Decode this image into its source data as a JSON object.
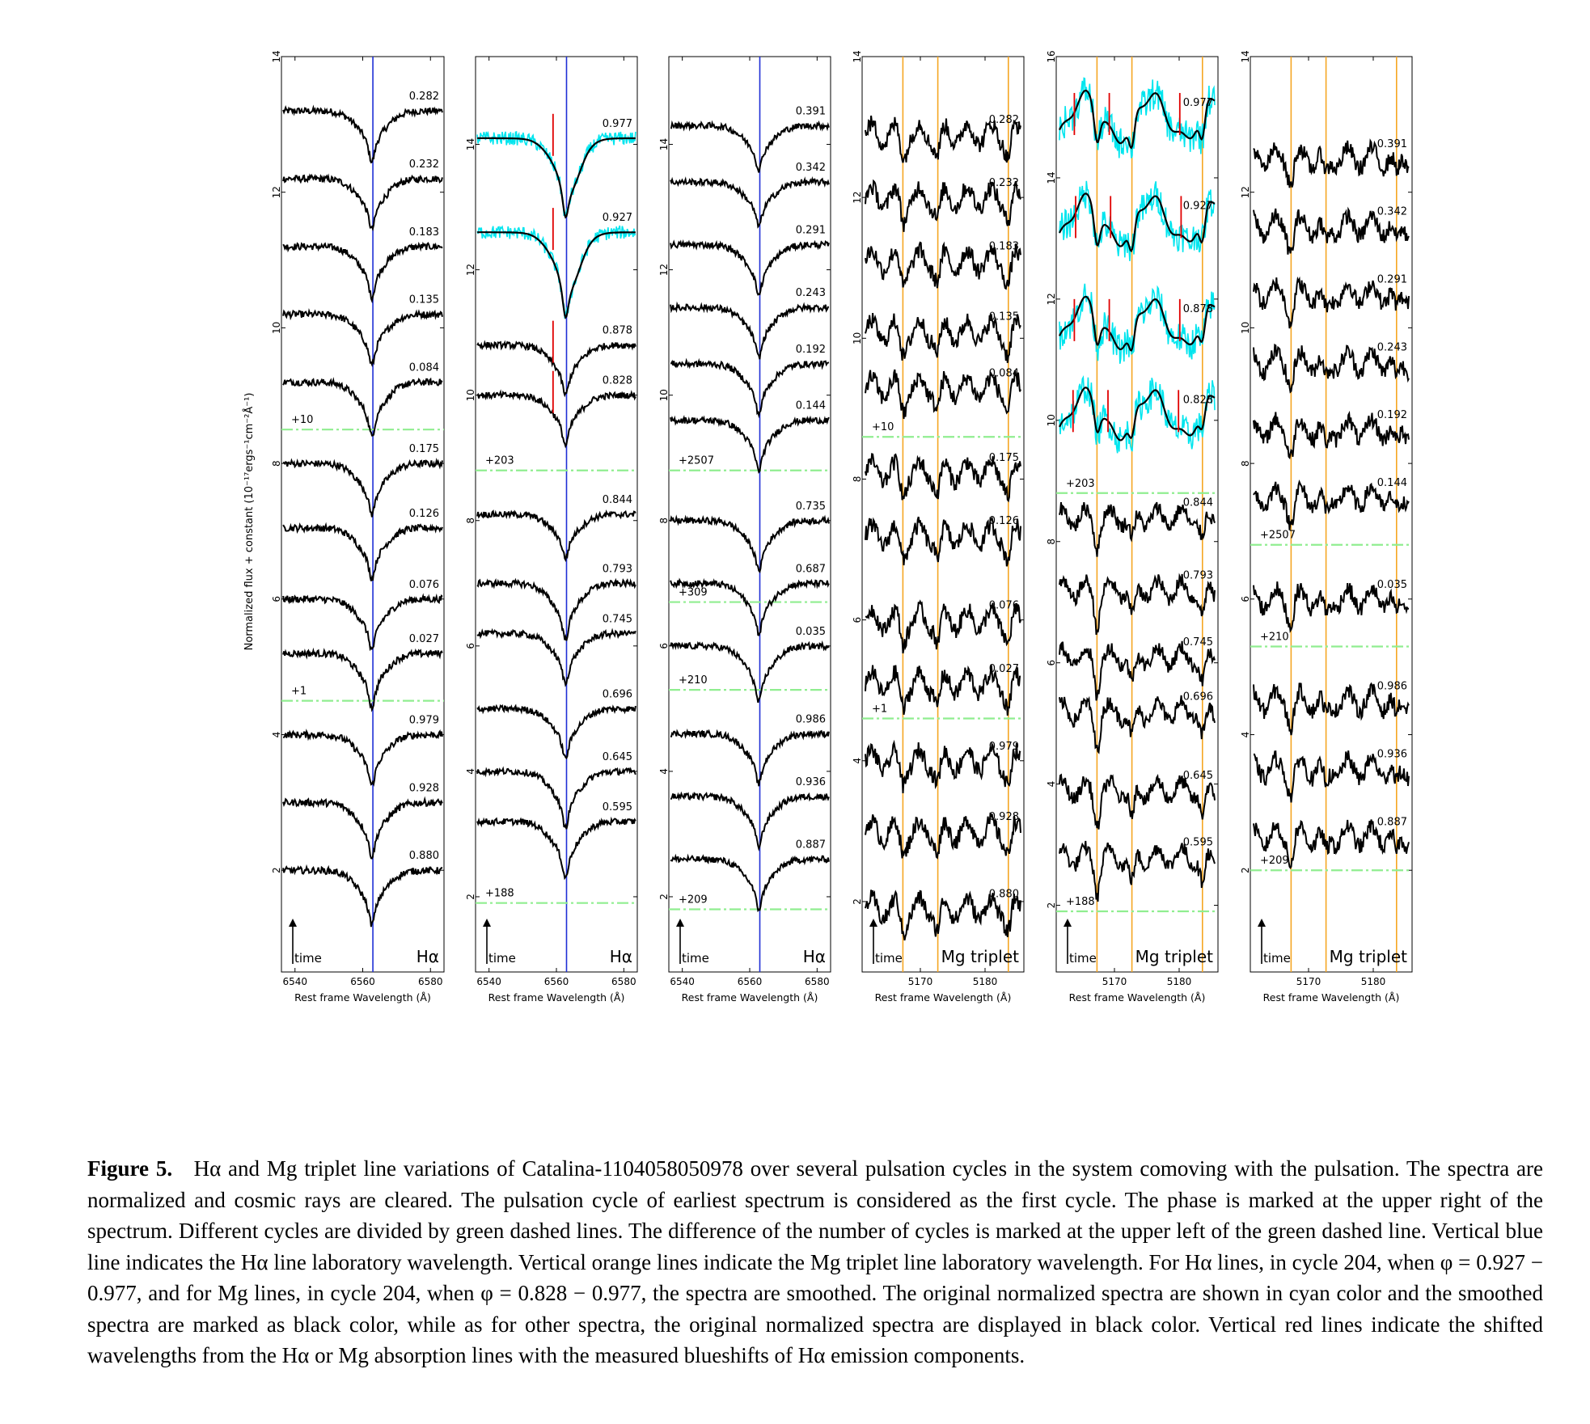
{
  "figure": {
    "ylabel": "Normalized flux + constant (10⁻¹⁷ergs⁻¹cm⁻²Å⁻¹)",
    "time_label": "time",
    "colors": {
      "spectrum": "#000000",
      "original": "#00e5ee",
      "halpha_line": "#1f2fd6",
      "mg_line": "#f5a623",
      "cycle_divider": "#90ee90",
      "shift_marker": "#e00000"
    }
  },
  "chart_data": [
    {
      "type": "line",
      "line_label": "Hα",
      "xlabel": "Rest frame Wavelength (Å)",
      "xlim": [
        6536,
        6584
      ],
      "xticks": [
        6540,
        6560,
        6580
      ],
      "ylim": [
        0.5,
        14
      ],
      "yticks": [
        2,
        4,
        6,
        8,
        10,
        12,
        14
      ],
      "lab_lines": [
        6563
      ],
      "line_color": "blue",
      "spectra": [
        {
          "phase": "0.282",
          "offset": 13.2,
          "depth": 0.75
        },
        {
          "phase": "0.232",
          "offset": 12.2,
          "depth": 0.75
        },
        {
          "phase": "0.183",
          "offset": 11.2,
          "depth": 0.75
        },
        {
          "phase": "0.135",
          "offset": 10.2,
          "depth": 0.75
        },
        {
          "phase": "0.084",
          "offset": 9.2,
          "depth": 0.8
        },
        {
          "phase": "0.175",
          "offset": 8.0,
          "depth": 0.75
        },
        {
          "phase": "0.126",
          "offset": 7.05,
          "depth": 0.75
        },
        {
          "phase": "0.076",
          "offset": 6.0,
          "depth": 0.75
        },
        {
          "phase": "0.027",
          "offset": 5.2,
          "depth": 0.8
        },
        {
          "phase": "0.979",
          "offset": 4.0,
          "depth": 0.75
        },
        {
          "phase": "0.928",
          "offset": 3.0,
          "depth": 0.8
        },
        {
          "phase": "0.880",
          "offset": 2.0,
          "depth": 0.8
        }
      ],
      "dividers": [
        {
          "label": "+10",
          "y": 8.5
        },
        {
          "label": "+1",
          "y": 4.5
        }
      ]
    },
    {
      "type": "line",
      "line_label": "Hα",
      "xlabel": "Rest frame Wavelength (Å)",
      "xlim": [
        6536,
        6584
      ],
      "xticks": [
        6540,
        6560,
        6580
      ],
      "ylim": [
        0.8,
        15.4
      ],
      "yticks": [
        2,
        4,
        6,
        8,
        10,
        12,
        14
      ],
      "lab_lines": [
        6563
      ],
      "line_color": "blue",
      "spectra": [
        {
          "phase": "0.977",
          "offset": 14.1,
          "depth": 1.1,
          "smoothed": true,
          "shift": 6559
        },
        {
          "phase": "0.927",
          "offset": 12.6,
          "depth": 1.2,
          "smoothed": true,
          "shift": 6559
        },
        {
          "phase": "0.878",
          "offset": 10.8,
          "depth": 0.8,
          "shift": 6559
        },
        {
          "phase": "0.828",
          "offset": 10.0,
          "depth": 0.8,
          "shift": 6559
        },
        {
          "phase": "0.844",
          "offset": 8.1,
          "depth": 0.7
        },
        {
          "phase": "0.793",
          "offset": 7.0,
          "depth": 0.9
        },
        {
          "phase": "0.745",
          "offset": 6.2,
          "depth": 0.8
        },
        {
          "phase": "0.696",
          "offset": 5.0,
          "depth": 0.8
        },
        {
          "phase": "0.645",
          "offset": 4.0,
          "depth": 0.9
        },
        {
          "phase": "0.595",
          "offset": 3.2,
          "depth": 0.9
        }
      ],
      "dividers": [
        {
          "label": "+203",
          "y": 8.8
        },
        {
          "label": "+188",
          "y": 1.9
        }
      ]
    },
    {
      "type": "line",
      "line_label": "Hα",
      "xlabel": "Rest frame Wavelength (Å)",
      "xlim": [
        6536,
        6584
      ],
      "xticks": [
        6540,
        6560,
        6580
      ],
      "ylim": [
        0.8,
        15.4
      ],
      "yticks": [
        2,
        4,
        6,
        8,
        10,
        12,
        14
      ],
      "lab_lines": [
        6563
      ],
      "line_color": "blue",
      "spectra": [
        {
          "phase": "0.391",
          "offset": 14.3,
          "depth": 0.7
        },
        {
          "phase": "0.342",
          "offset": 13.4,
          "depth": 0.7
        },
        {
          "phase": "0.291",
          "offset": 12.4,
          "depth": 0.8
        },
        {
          "phase": "0.243",
          "offset": 11.4,
          "depth": 0.8
        },
        {
          "phase": "0.192",
          "offset": 10.5,
          "depth": 0.8
        },
        {
          "phase": "0.144",
          "offset": 9.6,
          "depth": 0.8
        },
        {
          "phase": "0.735",
          "offset": 8.0,
          "depth": 0.8
        },
        {
          "phase": "0.687",
          "offset": 7.0,
          "depth": 0.8
        },
        {
          "phase": "0.035",
          "offset": 6.0,
          "depth": 0.9
        },
        {
          "phase": "0.986",
          "offset": 4.6,
          "depth": 0.8
        },
        {
          "phase": "0.936",
          "offset": 3.6,
          "depth": 0.8
        },
        {
          "phase": "0.887",
          "offset": 2.6,
          "depth": 0.8
        }
      ],
      "dividers": [
        {
          "label": "+2507",
          "y": 8.8
        },
        {
          "label": "+309",
          "y": 6.7
        },
        {
          "label": "+210",
          "y": 5.3
        },
        {
          "label": "+209",
          "y": 1.8
        }
      ]
    },
    {
      "type": "line",
      "line_label": "Mg triplet",
      "xlabel": "Rest frame Wavelength (Å)",
      "xlim": [
        5161,
        5186
      ],
      "xticks": [
        5170,
        5180
      ],
      "ylim": [
        1.0,
        14.0
      ],
      "yticks": [
        2,
        4,
        6,
        8,
        10,
        12,
        14
      ],
      "lab_lines": [
        5167.3,
        5172.7,
        5183.6
      ],
      "line_color": "orange",
      "spectra": [
        {
          "phase": "0.282",
          "offset": 12.9,
          "depth": 0.3
        },
        {
          "phase": "0.232",
          "offset": 12.0,
          "depth": 0.3
        },
        {
          "phase": "0.183",
          "offset": 11.1,
          "depth": 0.3
        },
        {
          "phase": "0.135",
          "offset": 10.1,
          "depth": 0.3
        },
        {
          "phase": "0.084",
          "offset": 9.3,
          "depth": 0.3
        },
        {
          "phase": "0.175",
          "offset": 8.1,
          "depth": 0.3
        },
        {
          "phase": "0.126",
          "offset": 7.2,
          "depth": 0.3
        },
        {
          "phase": "0.076",
          "offset": 6.0,
          "depth": 0.3
        },
        {
          "phase": "0.027",
          "offset": 5.1,
          "depth": 0.3
        },
        {
          "phase": "0.979",
          "offset": 4.0,
          "depth": 0.3
        },
        {
          "phase": "0.928",
          "offset": 3.0,
          "depth": 0.3
        },
        {
          "phase": "0.880",
          "offset": 1.9,
          "depth": 0.3
        }
      ],
      "dividers": [
        {
          "label": "+10",
          "y": 8.6
        },
        {
          "label": "+1",
          "y": 4.6
        }
      ]
    },
    {
      "type": "line",
      "line_label": "Mg triplet",
      "xlabel": "Rest frame Wavelength (Å)",
      "xlim": [
        5161,
        5186
      ],
      "xticks": [
        5170,
        5180
      ],
      "ylim": [
        0.9,
        16.0
      ],
      "yticks": [
        2,
        4,
        6,
        8,
        10,
        12,
        14,
        16
      ],
      "lab_lines": [
        5167.3,
        5172.7,
        5183.6
      ],
      "line_color": "orange",
      "spectra": [
        {
          "phase": "0.977",
          "offset": 15.0,
          "depth": 0.8,
          "smoothed": true,
          "shifts": [
            5163.8,
            5169.2,
            5180.1
          ]
        },
        {
          "phase": "0.927",
          "offset": 13.3,
          "depth": 0.8,
          "smoothed": true,
          "shifts": [
            5164.0,
            5169.4,
            5180.3
          ]
        },
        {
          "phase": "0.878",
          "offset": 11.6,
          "depth": 0.7,
          "smoothed": true,
          "shifts": [
            5163.8,
            5169.2,
            5180.1
          ]
        },
        {
          "phase": "0.828",
          "offset": 10.1,
          "depth": 0.6,
          "smoothed": true,
          "shifts": [
            5163.6,
            5169.0,
            5179.9
          ]
        },
        {
          "phase": "0.844",
          "offset": 8.4,
          "depth": 0.4
        },
        {
          "phase": "0.793",
          "offset": 7.2,
          "depth": 0.5
        },
        {
          "phase": "0.745",
          "offset": 6.1,
          "depth": 0.5
        },
        {
          "phase": "0.696",
          "offset": 5.2,
          "depth": 0.5
        },
        {
          "phase": "0.645",
          "offset": 3.9,
          "depth": 0.5
        },
        {
          "phase": "0.595",
          "offset": 2.8,
          "depth": 0.5
        }
      ],
      "dividers": [
        {
          "label": "+203",
          "y": 8.8
        },
        {
          "label": "+188",
          "y": 1.9
        }
      ]
    },
    {
      "type": "line",
      "line_label": "Mg triplet",
      "xlabel": "Rest frame Wavelength (Å)",
      "xlim": [
        5161,
        5186
      ],
      "xticks": [
        5170,
        5180
      ],
      "ylim": [
        0.5,
        14.0
      ],
      "yticks": [
        2,
        4,
        6,
        8,
        10,
        12,
        14
      ],
      "lab_lines": [
        5167.3,
        5172.7,
        5183.6
      ],
      "line_color": "orange",
      "spectra": [
        {
          "phase": "0.391",
          "offset": 12.5,
          "depth": 0.3
        },
        {
          "phase": "0.342",
          "offset": 11.5,
          "depth": 0.3
        },
        {
          "phase": "0.291",
          "offset": 10.5,
          "depth": 0.3
        },
        {
          "phase": "0.243",
          "offset": 9.5,
          "depth": 0.3
        },
        {
          "phase": "0.192",
          "offset": 8.5,
          "depth": 0.3
        },
        {
          "phase": "0.144",
          "offset": 7.5,
          "depth": 0.3
        },
        {
          "phase": "0.035",
          "offset": 6.0,
          "depth": 0.3
        },
        {
          "phase": "0.986",
          "offset": 4.5,
          "depth": 0.3
        },
        {
          "phase": "0.936",
          "offset": 3.5,
          "depth": 0.3
        },
        {
          "phase": "0.887",
          "offset": 2.5,
          "depth": 0.3
        }
      ],
      "dividers": [
        {
          "label": "+2507",
          "y": 6.8
        },
        {
          "label": "+210",
          "y": 5.3
        },
        {
          "label": "+209",
          "y": 2.0
        }
      ]
    }
  ],
  "caption": {
    "label": "Figure 5.",
    "text": "Hα and Mg triplet line variations of Catalina-1104058050978 over several pulsation cycles in the system comoving with the pulsation. The spectra are normalized and cosmic rays are cleared. The pulsation cycle of earliest spectrum is considered as the first cycle. The phase is marked at the upper right of the spectrum. Different cycles are divided by green dashed lines. The difference of the number of cycles is marked at the upper left of the green dashed line. Vertical blue line indicates the Hα line laboratory wavelength. Vertical orange lines indicate the Mg triplet line laboratory wavelength. For Hα lines, in cycle 204, when φ = 0.927 − 0.977, and for Mg lines, in cycle 204, when φ = 0.828 − 0.977, the spectra are smoothed. The original normalized spectra are shown in cyan color and the smoothed spectra are marked as black color, while as for other spectra, the original normalized spectra are displayed in black color. Vertical red lines indicate the shifted wavelengths from the Hα or Mg absorption lines with the measured blueshifts of Hα emission components."
  }
}
